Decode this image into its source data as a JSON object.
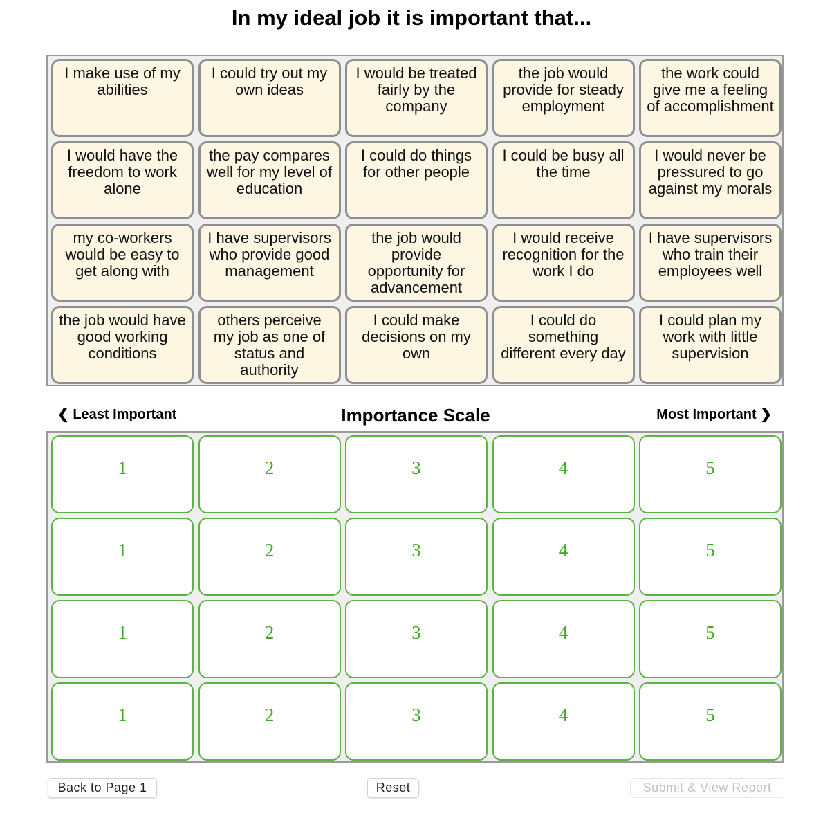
{
  "title": "In my ideal job it is important that...",
  "cards": [
    "I make use of my abilities",
    "I could try out my own ideas",
    "I would be treated fairly by the company",
    "the job would provide for steady employment",
    "the work could give me a feeling of accomplishment",
    "I would have the freedom to work alone",
    "the pay compares well for my level of education",
    "I could do things for other people",
    "I could be busy all the time",
    "I would never be pressured to go against my morals",
    "my co-workers would be easy to get along with",
    "I have supervisors who provide good management",
    "the job would provide opportunity for advancement",
    "I would receive recognition for the work I do",
    "I have supervisors who train their employees well",
    "the job would have good working conditions",
    "others perceive my job as one of status and authority",
    "I could make decisions on my own",
    "I could do something different every day",
    "I could plan my work with little supervision"
  ],
  "scale": {
    "left": "❮ Least Important",
    "title": "Importance Scale",
    "right": "Most Important ❯"
  },
  "slots": [
    [
      1,
      2,
      3,
      4,
      5
    ],
    [
      1,
      2,
      3,
      4,
      5
    ],
    [
      1,
      2,
      3,
      4,
      5
    ],
    [
      1,
      2,
      3,
      4,
      5
    ]
  ],
  "buttons": {
    "back": "Back to Page 1",
    "reset": "Reset",
    "submit": "Submit & View Report"
  }
}
